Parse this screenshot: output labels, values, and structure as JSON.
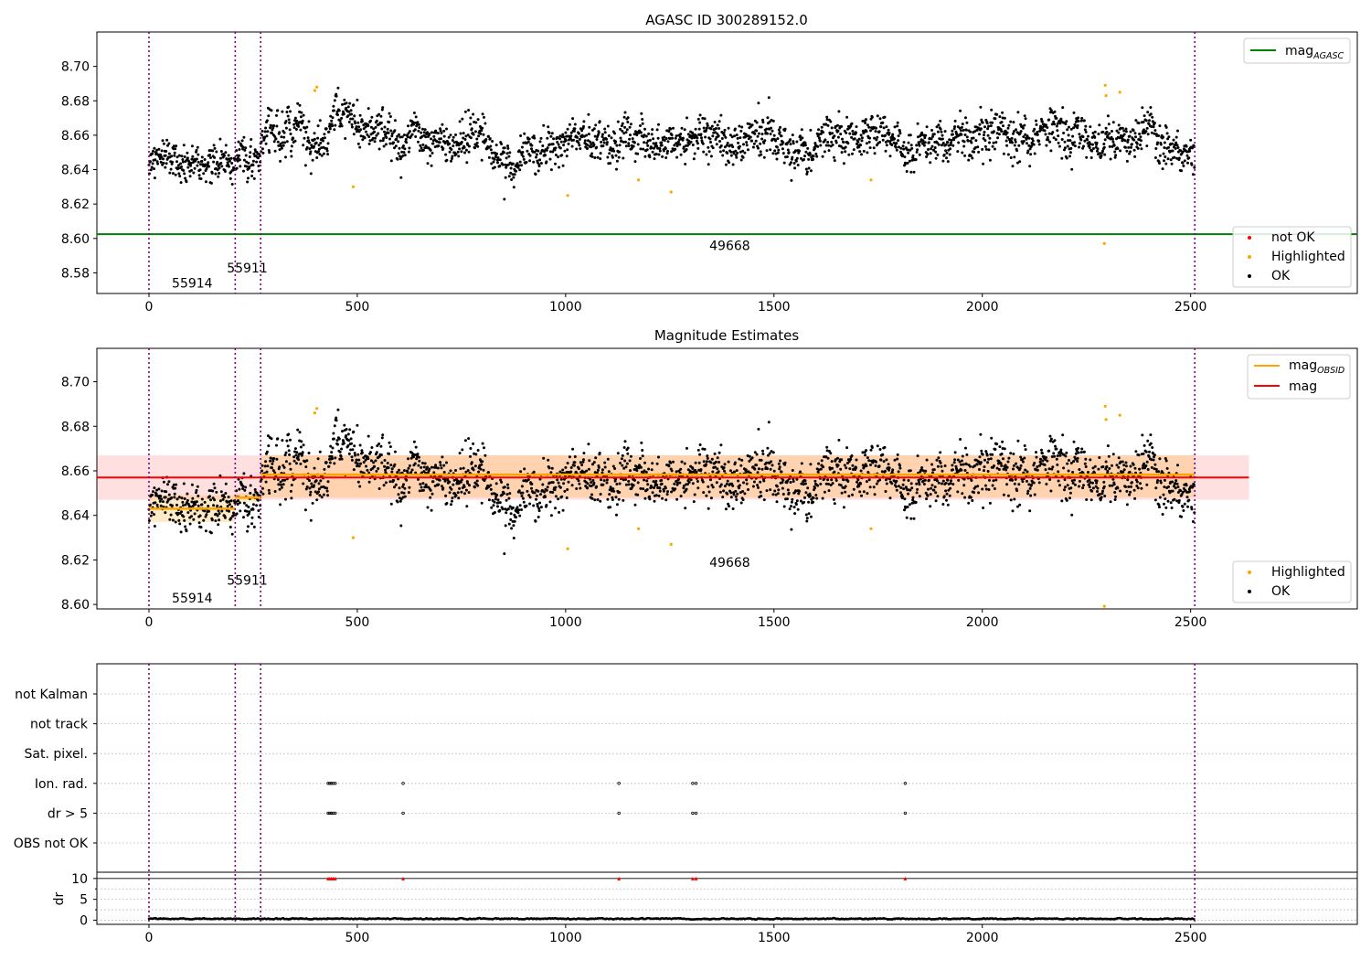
{
  "chart_data": [
    {
      "type": "scatter",
      "title": "AGASC ID 300289152.0",
      "xlabel": "",
      "ylabel": "",
      "xlim": [
        -125,
        2900
      ],
      "ylim": [
        8.568,
        8.72
      ],
      "x_ticks": [
        0,
        500,
        1000,
        1500,
        2000,
        2500
      ],
      "x_tick_labels": [
        "0",
        "500",
        "1000",
        "1500",
        "2000",
        "2500"
      ],
      "y_ticks": [
        8.58,
        8.6,
        8.62,
        8.64,
        8.66,
        8.68,
        8.7
      ],
      "y_tick_labels": [
        "8.58",
        "8.60",
        "8.62",
        "8.64",
        "8.66",
        "8.68",
        "8.70"
      ],
      "grid": false,
      "vlines": [
        0,
        207,
        268,
        2510
      ],
      "hline": {
        "label_base": "mag",
        "label_sub": "AGASC",
        "value": 8.6025,
        "color": "#008000"
      },
      "legend_lines_position": "top-right",
      "legend_points_position": "bottom-right",
      "legend_points": [
        {
          "label": "not OK",
          "color": "#ff0000"
        },
        {
          "label": "Highlighted",
          "color": "#ffa500"
        },
        {
          "label": "OK",
          "color": "#000000"
        }
      ],
      "annotations": [
        {
          "text": "55914",
          "x": 55,
          "y": 8.574
        },
        {
          "text": "55911",
          "x": 187,
          "y": 8.583
        },
        {
          "text": "49668",
          "x": 1345,
          "y": 8.596
        }
      ],
      "segments": [
        {
          "x0": 0,
          "x1": 207,
          "mean": 8.644,
          "std": 0.006,
          "trend": 0
        },
        {
          "x0": 207,
          "x1": 268,
          "mean": 8.648,
          "std": 0.007,
          "trend": 0
        },
        {
          "x0": 268,
          "x1": 2510,
          "mean": 8.658,
          "std": 0.0075,
          "trend": 0
        }
      ],
      "highlighted": [
        [
          398,
          8.686
        ],
        [
          403,
          8.688
        ],
        [
          490,
          8.63
        ],
        [
          1005,
          8.625
        ],
        [
          1175,
          8.634
        ],
        [
          1253,
          8.627
        ],
        [
          1733,
          8.634
        ],
        [
          2293,
          8.597
        ],
        [
          2295,
          8.689
        ],
        [
          2297,
          8.683
        ],
        [
          2330,
          8.685
        ]
      ]
    },
    {
      "type": "scatter",
      "title": "Magnitude Estimates",
      "xlabel": "",
      "ylabel": "",
      "xlim": [
        -125,
        2900
      ],
      "ylim": [
        8.598,
        8.715
      ],
      "x_ticks": [
        0,
        500,
        1000,
        1500,
        2000,
        2500
      ],
      "x_tick_labels": [
        "0",
        "500",
        "1000",
        "1500",
        "2000",
        "2500"
      ],
      "y_ticks": [
        8.6,
        8.62,
        8.64,
        8.66,
        8.68,
        8.7
      ],
      "y_tick_labels": [
        "8.60",
        "8.62",
        "8.64",
        "8.66",
        "8.68",
        "8.70"
      ],
      "grid": false,
      "vlines": [
        0,
        207,
        268,
        2510
      ],
      "legend_lines_position": "top-right",
      "legend_points_position": "bottom-right",
      "legend_lines": [
        {
          "label_base": "mag",
          "label_sub": "OBSID",
          "color": "#ffa500"
        },
        {
          "label_base": "mag",
          "label_sub": "",
          "color": "#ff0000"
        }
      ],
      "legend_points": [
        {
          "label": "Highlighted",
          "color": "#ffa500"
        },
        {
          "label": "OK",
          "color": "#000000"
        }
      ],
      "mag_band": {
        "x0": -125,
        "x1": 2640,
        "value": 8.657,
        "low": 8.647,
        "high": 8.667,
        "color": "#ff0000"
      },
      "obsid_levels": [
        {
          "x0": 0,
          "x1": 207,
          "value": 8.643,
          "low": 8.637,
          "high": 8.649
        },
        {
          "x0": 207,
          "x1": 268,
          "value": 8.648,
          "low": 8.646,
          "high": 8.65
        },
        {
          "x0": 268,
          "x1": 2510,
          "value": 8.6583,
          "low": 8.648,
          "high": 8.667
        }
      ],
      "annotations": [
        {
          "text": "55914",
          "x": 55,
          "y": 8.603
        },
        {
          "text": "55911",
          "x": 187,
          "y": 8.611
        },
        {
          "text": "49668",
          "x": 1345,
          "y": 8.619
        }
      ]
    },
    {
      "type": "scatter",
      "title": "",
      "xlim": [
        -125,
        2900
      ],
      "x_ticks": [
        0,
        500,
        1000,
        1500,
        2000,
        2500
      ],
      "x_tick_labels": [
        "0",
        "500",
        "1000",
        "1500",
        "2000",
        "2500"
      ],
      "vlines": [
        0,
        207,
        268,
        2510
      ],
      "flags_categories": [
        "not Kalman",
        "not track",
        "Sat. pixel.",
        "Ion. rad.",
        "dr > 5",
        "OBS not OK"
      ],
      "grid": true,
      "flag_points": {
        "Ion. rad.": [
          430,
          434,
          438,
          442,
          447,
          610,
          1128,
          1305,
          1313,
          1815
        ],
        "dr > 5": [
          430,
          434,
          438,
          442,
          447,
          610,
          1128,
          1305,
          1313,
          1815
        ]
      },
      "dr": {
        "ylabel": "dr",
        "ylim": [
          -1,
          11.5
        ],
        "y_ticks": [
          0,
          5,
          10
        ],
        "y_tick_labels": [
          "0",
          "5",
          "10"
        ],
        "hline": 10,
        "clipped_points": [
          430,
          434,
          438,
          442,
          447,
          610,
          1128,
          1305,
          1313,
          1815
        ],
        "clipped_color": "#ff0000",
        "typical_range": [
          0.1,
          0.8
        ]
      }
    }
  ]
}
